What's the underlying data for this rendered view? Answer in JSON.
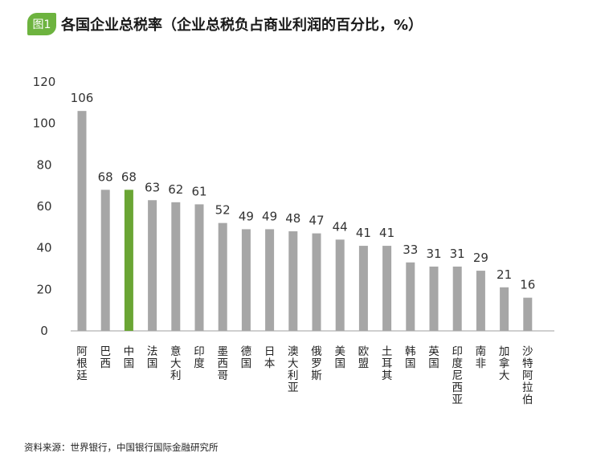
{
  "header": {
    "badge": "图1",
    "title": "各国企业总税率（企业总税负占商业利润的百分比，%）"
  },
  "source": "资料来源：世界银行，中国银行国际金融研究所",
  "colors": {
    "default_bar": "#a6a6a6",
    "highlight_bar": "#6aa534",
    "badge": "#6db33f"
  },
  "chart_data": {
    "type": "bar",
    "title": "各国企业总税率（企业总税负占商业利润的百分比，%）",
    "xlabel": "",
    "ylabel": "",
    "ylim": [
      0,
      120
    ],
    "yticks": [
      0,
      20,
      40,
      60,
      80,
      100,
      120
    ],
    "grid": false,
    "highlight": "中国",
    "categories": [
      "阿根廷",
      "巴西",
      "中国",
      "法国",
      "意大利",
      "印度",
      "墨西哥",
      "德国",
      "日本",
      "澳大利亚",
      "俄罗斯",
      "美国",
      "欧盟",
      "土耳其",
      "韩国",
      "英国",
      "印度尼西亚",
      "南非",
      "加拿大",
      "沙特阿拉伯"
    ],
    "values": [
      106,
      68,
      68,
      63,
      62,
      61,
      52,
      49,
      49,
      48,
      47,
      44,
      41,
      41,
      33,
      31,
      31,
      29,
      21,
      16
    ]
  }
}
